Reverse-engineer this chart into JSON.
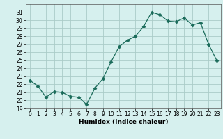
{
  "x": [
    0,
    1,
    2,
    3,
    4,
    5,
    6,
    7,
    8,
    9,
    10,
    11,
    12,
    13,
    14,
    15,
    16,
    17,
    18,
    19,
    20,
    21,
    22,
    23
  ],
  "y": [
    22.5,
    21.8,
    20.4,
    21.1,
    21.0,
    20.5,
    20.4,
    19.5,
    21.5,
    22.7,
    24.8,
    26.7,
    27.5,
    28.0,
    29.2,
    31.0,
    30.7,
    29.9,
    29.8,
    30.3,
    29.4,
    29.7,
    27.0,
    25.0
  ],
  "line_color": "#1a6b5a",
  "marker": "D",
  "marker_size": 2.5,
  "bg_color": "#d6f0ee",
  "grid_color": "#aaccc8",
  "xlabel": "Humidex (Indice chaleur)",
  "ylim": [
    19,
    32
  ],
  "xlim": [
    -0.5,
    23.5
  ],
  "yticks": [
    19,
    20,
    21,
    22,
    23,
    24,
    25,
    26,
    27,
    28,
    29,
    30,
    31
  ],
  "xticks": [
    0,
    1,
    2,
    3,
    4,
    5,
    6,
    7,
    8,
    9,
    10,
    11,
    12,
    13,
    14,
    15,
    16,
    17,
    18,
    19,
    20,
    21,
    22,
    23
  ],
  "label_fontsize": 6.5,
  "tick_fontsize": 5.5
}
